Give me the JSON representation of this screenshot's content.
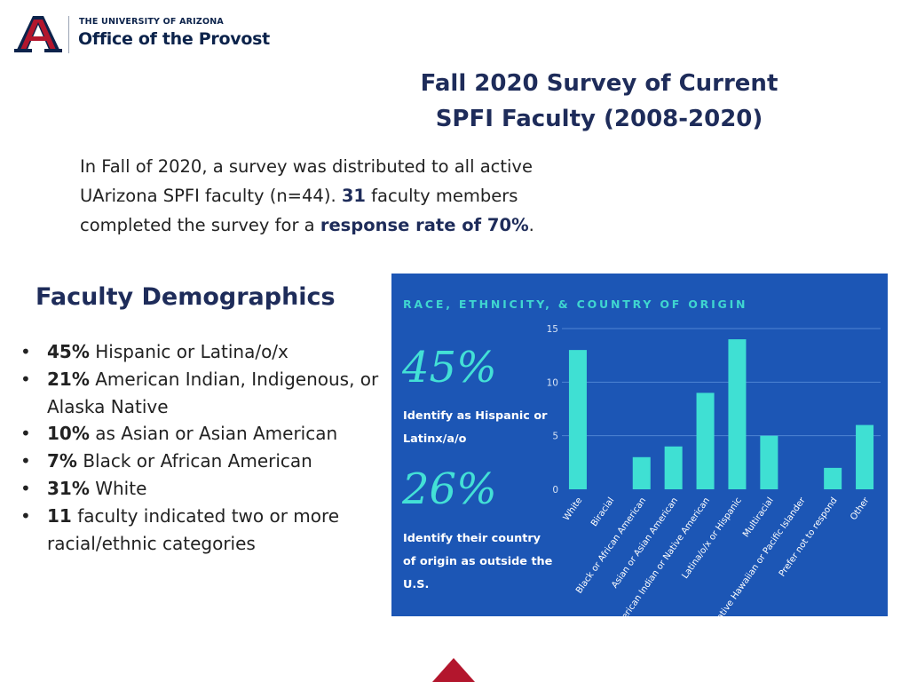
{
  "logo": {
    "university": "THE UNIVERSITY OF ARIZONA",
    "office": "Office of the Provost"
  },
  "title": {
    "line1": "Fall 2020 Survey of Current",
    "line2": "SPFI Faculty (2008-2020)"
  },
  "intro": {
    "text1": "In Fall of 2020, a survey was distributed to all active UArizona SPFI faculty (n=44). ",
    "count": "31",
    "text2": " faculty members completed the survey for a ",
    "rate": "response rate of 70%",
    "text3": "."
  },
  "demographics": {
    "title": "Faculty Demographics",
    "items": [
      {
        "bold": "45%",
        "text": " Hispanic or Latina/o/x"
      },
      {
        "bold": "21%",
        "text": " American Indian, Indigenous, or Alaska Native"
      },
      {
        "bold": "10%",
        "text": " as Asian or Asian American"
      },
      {
        "bold": "7%",
        "text": " Black or African American"
      },
      {
        "bold": "31%",
        "text": " White"
      },
      {
        "bold": "11",
        "text": " faculty indicated two or more racial/ethnic categories"
      }
    ]
  },
  "panel": {
    "stat1": "45%",
    "stat1_caption": "Identify as Hispanic or Latinx/a/o",
    "stat2": "26%",
    "stat2_caption": "Identify their country of origin as outside the U.S."
  },
  "colors": {
    "navy": "#1e2c5a",
    "panel_bg": "#1c56b5",
    "accent": "#3fd6d0",
    "red": "#b3162d"
  },
  "chart_data": {
    "type": "bar",
    "title": "RACE, ETHNICITY, & COUNTRY OF ORIGIN",
    "categories": [
      "White",
      "Biracial",
      "Black or African American",
      "Asian or Asian American",
      "American Indian or Native American",
      "Latina/o/x or Hispanic",
      "Multiracial",
      "Native Hawaiian or Pacific Islander",
      "Prefer not to respond",
      "Other"
    ],
    "values": [
      13,
      0,
      3,
      4,
      9,
      14,
      5,
      0,
      2,
      6
    ],
    "ylim": [
      0,
      15
    ],
    "yticks": [
      0,
      5,
      10,
      15
    ],
    "grid": true,
    "bar_color": "#3fe0d3"
  }
}
